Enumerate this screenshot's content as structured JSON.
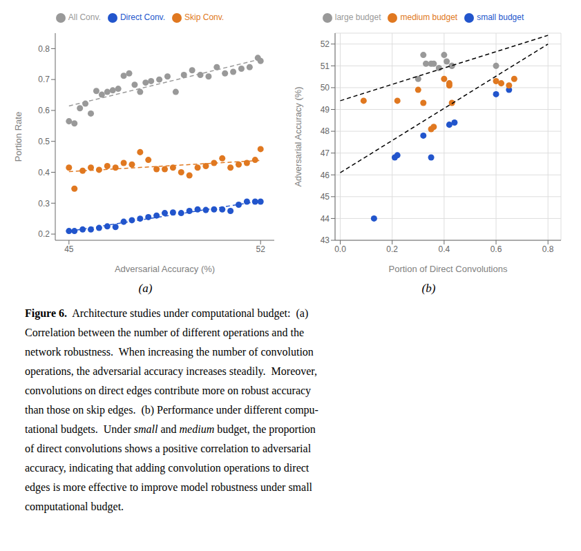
{
  "chart_data": [
    {
      "type": "scatter",
      "title": "(a)",
      "xlabel": "Adversarial Accuracy (%)",
      "ylabel": "Portion Rate",
      "xlim": [
        44.5,
        52.5
      ],
      "ylim": [
        0.18,
        0.85
      ],
      "xticks": [
        45,
        52
      ],
      "yticks": [
        0.2,
        0.3,
        0.4,
        0.5,
        0.6,
        0.7,
        0.8
      ],
      "grid": false,
      "series": [
        {
          "name": "All Conv.",
          "color": "#999999",
          "x": [
            45.0,
            45.2,
            45.4,
            45.6,
            45.8,
            46.0,
            46.2,
            46.4,
            46.6,
            46.8,
            47.0,
            47.2,
            47.4,
            47.6,
            47.8,
            48.0,
            48.3,
            48.6,
            48.9,
            49.2,
            49.5,
            49.8,
            50.1,
            50.4,
            50.7,
            51.0,
            51.3,
            51.6,
            51.9,
            52.0
          ],
          "values": [
            0.565,
            0.558,
            0.607,
            0.622,
            0.59,
            0.663,
            0.651,
            0.66,
            0.665,
            0.67,
            0.712,
            0.72,
            0.683,
            0.66,
            0.69,
            0.695,
            0.7,
            0.71,
            0.66,
            0.715,
            0.73,
            0.715,
            0.71,
            0.74,
            0.72,
            0.725,
            0.735,
            0.74,
            0.77,
            0.76
          ]
        },
        {
          "name": "Skip Conv.",
          "color": "#E07820",
          "x": [
            45.0,
            45.2,
            45.5,
            45.8,
            46.1,
            46.4,
            46.7,
            47.0,
            47.3,
            47.6,
            47.9,
            48.2,
            48.5,
            48.8,
            49.1,
            49.4,
            49.7,
            50.0,
            50.3,
            50.6,
            50.9,
            51.2,
            51.5,
            51.8,
            52.0
          ],
          "values": [
            0.415,
            0.347,
            0.405,
            0.415,
            0.408,
            0.42,
            0.415,
            0.43,
            0.425,
            0.465,
            0.44,
            0.41,
            0.41,
            0.415,
            0.4,
            0.39,
            0.415,
            0.42,
            0.43,
            0.445,
            0.415,
            0.425,
            0.43,
            0.44,
            0.475
          ]
        },
        {
          "name": "Direct Conv.",
          "color": "#2255CC",
          "x": [
            45.0,
            45.2,
            45.5,
            45.8,
            46.1,
            46.4,
            46.7,
            47.0,
            47.3,
            47.6,
            47.9,
            48.2,
            48.5,
            48.8,
            49.1,
            49.4,
            49.7,
            50.0,
            50.3,
            50.6,
            50.9,
            51.2,
            51.5,
            51.8,
            52.0
          ],
          "values": [
            0.21,
            0.21,
            0.215,
            0.215,
            0.22,
            0.225,
            0.223,
            0.24,
            0.245,
            0.25,
            0.255,
            0.26,
            0.268,
            0.27,
            0.268,
            0.275,
            0.28,
            0.278,
            0.28,
            0.28,
            0.275,
            0.295,
            0.305,
            0.305,
            0.305
          ]
        },
        {
          "type": "line",
          "line_style": "dashed",
          "color": "#999999",
          "x": [
            45.0,
            52.0
          ],
          "values": [
            0.6145,
            0.766
          ]
        },
        {
          "type": "line",
          "line_style": "dashed",
          "color": "#E07820",
          "x": [
            45.0,
            52.0
          ],
          "values": [
            0.4021,
            0.4383
          ]
        },
        {
          "type": "line",
          "line_style": "dashed",
          "color": "#2255CC",
          "x": [
            45.0,
            52.0
          ],
          "values": [
            0.2092,
            0.307
          ]
        }
      ]
    },
    {
      "type": "scatter",
      "title": "(b)",
      "xlabel": "Portion of Direct Convolutions",
      "ylabel": "Adversarial Accuracy (%)",
      "xlim": [
        -0.02,
        0.85
      ],
      "ylim": [
        43.0,
        52.5
      ],
      "xticks": [
        {
          "value": 0,
          "label": "0.0"
        },
        0.2,
        0.4,
        0.6,
        0.8
      ],
      "yticks": [
        43,
        44,
        45,
        46,
        47,
        48,
        49,
        50,
        51,
        52
      ],
      "grid": true,
      "series": [
        {
          "name": "small budget",
          "color": "#2255CC",
          "x": [
            0.13,
            0.21,
            0.22,
            0.32,
            0.35,
            0.42,
            0.44,
            0.6,
            0.65
          ],
          "values": [
            44.0,
            46.8,
            46.9,
            47.8,
            46.8,
            48.3,
            48.4,
            49.7,
            49.9
          ]
        },
        {
          "name": "medium budget",
          "color": "#E07820",
          "x": [
            0.09,
            0.22,
            0.3,
            0.32,
            0.35,
            0.36,
            0.4,
            0.42,
            0.42,
            0.43,
            0.6,
            0.62,
            0.65,
            0.67
          ],
          "values": [
            49.4,
            49.4,
            49.9,
            49.3,
            48.1,
            48.2,
            50.4,
            50.1,
            50.2,
            49.3,
            50.3,
            50.2,
            50.1,
            50.4
          ]
        },
        {
          "name": "large budget",
          "color": "#999999",
          "x": [
            0.3,
            0.32,
            0.33,
            0.35,
            0.36,
            0.38,
            0.4,
            0.41,
            0.43,
            0.43,
            0.6
          ],
          "values": [
            50.4,
            51.5,
            51.1,
            51.1,
            51.1,
            50.9,
            51.5,
            51.2,
            51.0,
            51.0,
            51.0
          ]
        },
        {
          "type": "line",
          "line_style": "dashed",
          "color": "#000000",
          "x": [
            0.0,
            0.8
          ],
          "values": [
            46.1,
            52.0
          ]
        },
        {
          "type": "line",
          "line_style": "dashed",
          "color": "#000000",
          "x": [
            0.0,
            0.8
          ],
          "values": [
            49.4,
            52.4
          ]
        }
      ]
    }
  ],
  "annotations": [
    [
      {
        "text": "Figure 6.",
        "style": "bold"
      },
      {
        "text": "  Architecture studies under computational budget:  (a)",
        "style": "normal"
      }
    ],
    [
      {
        "text": "Correlation between the number of different operations and the",
        "style": "normal"
      }
    ],
    [
      {
        "text": "network robustness.  When increasing the number of convolution",
        "style": "normal"
      }
    ],
    [
      {
        "text": "operations, the adversarial accuracy increases steadily.  Moreover,",
        "style": "normal"
      }
    ],
    [
      {
        "text": "convolutions on direct edges contribute more on robust accuracy",
        "style": "normal"
      }
    ],
    [
      {
        "text": "than those on skip edges.  (b) Performance under different compu-",
        "style": "normal"
      }
    ],
    [
      {
        "text": "tational budgets.  Under ",
        "style": "normal"
      },
      {
        "text": "small",
        "style": "italic"
      },
      {
        "text": " and ",
        "style": "normal"
      },
      {
        "text": "medium",
        "style": "italic"
      },
      {
        "text": " budget, the proportion",
        "style": "normal"
      }
    ],
    [
      {
        "text": "of direct convolutions shows a positive correlation to adversarial",
        "style": "normal"
      }
    ],
    [
      {
        "text": "accuracy, indicating that adding convolution operations to direct",
        "style": "normal"
      }
    ],
    [
      {
        "text": "edges is more effective to improve model robustness under small",
        "style": "normal"
      }
    ],
    [
      {
        "text": "computational budget.",
        "style": "normal"
      }
    ]
  ]
}
